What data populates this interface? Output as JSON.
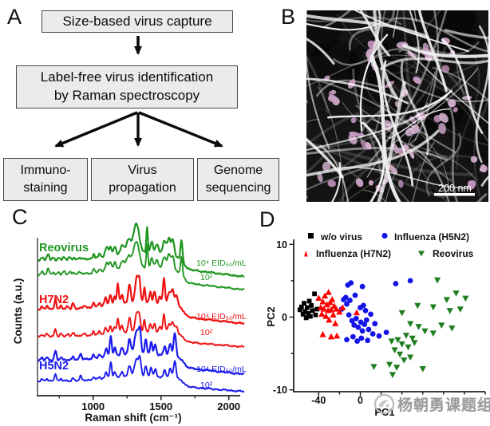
{
  "panel_a": {
    "label": "A",
    "box_capture": "Size-based virus capture",
    "box_raman_line1": "Label-free virus identification",
    "box_raman_line2": "by Raman spectroscopy",
    "box_immuno_line1": "Immuno-",
    "box_immuno_line2": "staining",
    "box_propagation_line1": "Virus",
    "box_propagation_line2": "propagation",
    "box_genome_line1": "Genome",
    "box_genome_line2": "sequencing"
  },
  "panel_b": {
    "label": "B",
    "description": "false-color electron micrograph of virus particles captured on nanofiber mesh",
    "scale_bar_label": "200 nm"
  },
  "panel_c": {
    "label": "C"
  },
  "panel_d": {
    "label": "D"
  },
  "watermark": {
    "text": "杨朝勇课题组"
  },
  "chart_data": [
    {
      "type": "line",
      "panel": "C",
      "xlabel": "Raman shift (cm⁻¹)",
      "ylabel": "Counts (a.u.)",
      "xlim": [
        590,
        2120
      ],
      "xticks": [
        1000,
        1500,
        2000
      ],
      "xticks_minor": [
        750,
        1250,
        1750
      ],
      "yaxis_ticks": "none (arbitrary units)",
      "legend_position": "inline labels",
      "grid": false,
      "groups": [
        {
          "name": "Reovirus",
          "color": "#1f9620",
          "label_high": "10⁴ EID₅₀/mL",
          "label_low": "10²",
          "peaks": [
            [
              625,
              0.14,
              10
            ],
            [
              668,
              0.22,
              9
            ],
            [
              705,
              0.1,
              9
            ],
            [
              745,
              0.12,
              9
            ],
            [
              785,
              0.12,
              9
            ],
            [
              828,
              0.1,
              9
            ],
            [
              858,
              0.08,
              8
            ],
            [
              900,
              0.06,
              10
            ],
            [
              1005,
              0.14,
              6
            ],
            [
              1048,
              0.1,
              8
            ],
            [
              1100,
              0.32,
              11
            ],
            [
              1128,
              0.3,
              9
            ],
            [
              1160,
              0.28,
              9
            ],
            [
              1215,
              0.3,
              14
            ],
            [
              1260,
              0.45,
              16
            ],
            [
              1318,
              1.0,
              22
            ],
            [
              1398,
              0.88,
              6
            ],
            [
              1432,
              0.4,
              10
            ],
            [
              1470,
              0.35,
              12
            ],
            [
              1525,
              0.48,
              13
            ],
            [
              1560,
              0.6,
              12
            ],
            [
              1588,
              0.55,
              10
            ],
            [
              1652,
              0.82,
              7
            ]
          ]
        },
        {
          "name": "H7N2",
          "color": "#f01111",
          "label_high": "10⁴ EID₅₀/mL",
          "label_low": "10²",
          "peaks": [
            [
              622,
              0.12,
              9
            ],
            [
              660,
              0.14,
              8
            ],
            [
              722,
              0.42,
              7
            ],
            [
              762,
              0.14,
              8
            ],
            [
              812,
              0.1,
              8
            ],
            [
              852,
              0.22,
              8
            ],
            [
              938,
              0.1,
              8
            ],
            [
              1002,
              0.2,
              6
            ],
            [
              1046,
              0.14,
              7
            ],
            [
              1092,
              0.32,
              9
            ],
            [
              1126,
              0.38,
              8
            ],
            [
              1158,
              0.3,
              7
            ],
            [
              1182,
              0.78,
              7
            ],
            [
              1212,
              0.35,
              9
            ],
            [
              1268,
              0.72,
              9
            ],
            [
              1322,
              1.0,
              12
            ],
            [
              1342,
              0.7,
              8
            ],
            [
              1378,
              0.58,
              7
            ],
            [
              1422,
              0.42,
              8
            ],
            [
              1452,
              0.48,
              8
            ],
            [
              1492,
              0.3,
              8
            ],
            [
              1522,
              0.98,
              8
            ],
            [
              1558,
              0.45,
              10
            ],
            [
              1585,
              0.6,
              12
            ],
            [
              1615,
              0.4,
              9
            ]
          ]
        },
        {
          "name": "H5N2",
          "color": "#1b1bef",
          "label_high": "10⁴ EID₅₀/mL",
          "label_low": "10²",
          "peaks": [
            [
              622,
              0.12,
              9
            ],
            [
              658,
              0.12,
              8
            ],
            [
              722,
              0.38,
              8
            ],
            [
              762,
              0.12,
              8
            ],
            [
              852,
              0.14,
              8
            ],
            [
              908,
              0.22,
              7
            ],
            [
              1002,
              0.14,
              6
            ],
            [
              1046,
              0.12,
              7
            ],
            [
              1096,
              0.34,
              9
            ],
            [
              1130,
              0.8,
              7
            ],
            [
              1160,
              0.3,
              8
            ],
            [
              1212,
              0.3,
              9
            ],
            [
              1268,
              0.58,
              10
            ],
            [
              1320,
              0.92,
              15
            ],
            [
              1345,
              0.8,
              9
            ],
            [
              1388,
              0.55,
              8
            ],
            [
              1428,
              0.5,
              8
            ],
            [
              1458,
              0.42,
              8
            ],
            [
              1528,
              0.38,
              9
            ],
            [
              1568,
              0.5,
              10
            ],
            [
              1602,
              0.95,
              9
            ]
          ]
        }
      ]
    },
    {
      "type": "scatter",
      "panel": "D",
      "xlabel": "PC1",
      "ylabel": "PC2",
      "xlim": [
        -64,
        122
      ],
      "ylim": [
        -10.5,
        10.5
      ],
      "xticks": {
        "labeled": [
          -40,
          0
        ],
        "all": [
          -40,
          -20,
          0,
          20,
          40,
          60,
          80,
          100,
          120
        ]
      },
      "yticks": {
        "labeled": [
          10,
          0,
          -10
        ],
        "all": [
          10,
          5,
          0,
          -5,
          -10
        ]
      },
      "grid": false,
      "legend_position": "top, two columns",
      "series": [
        {
          "name": "w/o virus",
          "marker": "square",
          "color": "#000000",
          "points": [
            [
              -58,
              1.0
            ],
            [
              -56.5,
              1.4
            ],
            [
              -55,
              0.4
            ],
            [
              -54,
              1.9
            ],
            [
              -53,
              0.8
            ],
            [
              -52,
              -0.1
            ],
            [
              -51,
              1.3
            ],
            [
              -50,
              0.5
            ],
            [
              -49,
              2.2
            ],
            [
              -48,
              0.1
            ],
            [
              -47,
              1.6
            ],
            [
              -46,
              0.9
            ],
            [
              -44,
              3.2
            ],
            [
              -43,
              0.3
            ],
            [
              -41.5,
              1.1
            ]
          ]
        },
        {
          "name": "Influenza (H5N2)",
          "marker": "circle",
          "color": "#1414e8",
          "points": [
            [
              -12,
              4.4
            ],
            [
              -9,
              4.7
            ],
            [
              2,
              4.2
            ],
            [
              34,
              4.6
            ],
            [
              48,
              5.0
            ],
            [
              -16,
              2.4
            ],
            [
              -14,
              2.7
            ],
            [
              -13,
              1.8
            ],
            [
              -10,
              2.3
            ],
            [
              -5,
              3.0
            ],
            [
              0,
              1.3
            ],
            [
              3,
              1.6
            ],
            [
              5,
              0.9
            ],
            [
              -11,
              0.3
            ],
            [
              -8,
              -0.5
            ],
            [
              -6,
              -1.1
            ],
            [
              -4,
              -0.2
            ],
            [
              -2,
              -1.4
            ],
            [
              0.5,
              -0.7
            ],
            [
              2,
              -1.9
            ],
            [
              4,
              -1.0
            ],
            [
              6,
              -0.4
            ],
            [
              8,
              -1.7
            ],
            [
              10,
              0.4
            ],
            [
              12,
              -2.3
            ],
            [
              -7,
              -2.7
            ],
            [
              -13,
              -3.1
            ],
            [
              -3,
              -3.3
            ],
            [
              1,
              -2.9
            ],
            [
              7,
              -3.2
            ],
            [
              14,
              -0.9
            ],
            [
              18,
              -2.6
            ],
            [
              25,
              -2.1
            ],
            [
              -18,
              1.1
            ]
          ]
        },
        {
          "name": "Influenza (H7N2)",
          "marker": "triangle-up",
          "color": "#ff0000",
          "points": [
            [
              -40,
              2.6
            ],
            [
              -38,
              1.3
            ],
            [
              -37,
              0.4
            ],
            [
              -36,
              2.1
            ],
            [
              -35,
              1.1
            ],
            [
              -34,
              2.9
            ],
            [
              -33,
              0.1
            ],
            [
              -32,
              1.7
            ],
            [
              -31,
              0.9
            ],
            [
              -30.5,
              3.4
            ],
            [
              -30,
              -0.4
            ],
            [
              -29,
              2.0
            ],
            [
              -28,
              1.0
            ],
            [
              -27,
              2.4
            ],
            [
              -26,
              0.3
            ],
            [
              -25,
              1.5
            ],
            [
              -24,
              -0.9
            ],
            [
              -23,
              1.1
            ],
            [
              -36,
              -2.4
            ],
            [
              -28,
              -2.7
            ],
            [
              -22.5,
              -2.6
            ],
            [
              -20,
              0.7
            ],
            [
              -17,
              1.3
            ],
            [
              -3.5,
              0.6
            ]
          ]
        },
        {
          "name": "Reovirus",
          "marker": "triangle-down",
          "color": "#1e7d1e",
          "points": [
            [
              74,
              5.1
            ],
            [
              101,
              2.6
            ],
            [
              92,
              3.3
            ],
            [
              96,
              1.1
            ],
            [
              83,
              2.4
            ],
            [
              86,
              0.9
            ],
            [
              55,
              1.6
            ],
            [
              70,
              1.4
            ],
            [
              40,
              0.6
            ],
            [
              48,
              -0.9
            ],
            [
              56,
              -1.3
            ],
            [
              62,
              -1.9
            ],
            [
              70,
              -2.2
            ],
            [
              78,
              -1.1
            ],
            [
              88,
              -1.5
            ],
            [
              44,
              -2.5
            ],
            [
              50,
              -2.9
            ],
            [
              36,
              -3.1
            ],
            [
              40,
              -3.7
            ],
            [
              46,
              -4.1
            ],
            [
              52,
              -3.5
            ],
            [
              30,
              -3.3
            ],
            [
              33,
              -4.5
            ],
            [
              38,
              -5.1
            ],
            [
              42,
              -5.9
            ],
            [
              28,
              -6.5
            ],
            [
              35,
              -6.9
            ],
            [
              48,
              -5.5
            ],
            [
              60,
              -7.1
            ],
            [
              13,
              -6.8
            ],
            [
              31,
              -7.9
            ]
          ]
        }
      ]
    }
  ]
}
